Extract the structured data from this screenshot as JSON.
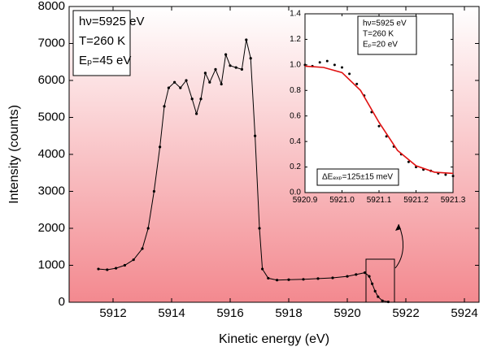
{
  "chart_data": [
    {
      "type": "line",
      "xlabel": "Kinetic energy (eV)",
      "ylabel": "Intensity (counts)",
      "xlim": [
        5910.5,
        5924.5
      ],
      "xticks": [
        5912,
        5914,
        5916,
        5918,
        5920,
        5922,
        5924
      ],
      "ylim": [
        0,
        8000
      ],
      "yticks": [
        0,
        1000,
        2000,
        3000,
        4000,
        5000,
        6000,
        7000,
        8000
      ],
      "annotations": [
        [
          "hν=5925 eV",
          "T=260 K",
          "Eₚ=45 eV"
        ]
      ],
      "series": [
        {
          "color": "#000000",
          "line": true,
          "markers": true,
          "x": [
            5911.5,
            5911.8,
            5912.1,
            5912.4,
            5912.7,
            5913.0,
            5913.2,
            5913.4,
            5913.6,
            5913.75,
            5913.9,
            5914.1,
            5914.3,
            5914.5,
            5914.7,
            5914.85,
            5915.0,
            5915.15,
            5915.3,
            5915.5,
            5915.7,
            5915.85,
            5916.0,
            5916.2,
            5916.4,
            5916.55,
            5916.7,
            5916.85,
            5917.0,
            5917.1,
            5917.3,
            5917.6,
            5918.0,
            5918.5,
            5919.0,
            5919.5,
            5920.0,
            5920.3,
            5920.6,
            5920.75,
            5920.85,
            5920.95,
            5921.05,
            5921.2,
            5921.4
          ],
          "values": [
            900,
            880,
            920,
            1000,
            1150,
            1450,
            2000,
            3000,
            4200,
            5300,
            5800,
            5950,
            5800,
            6000,
            5500,
            5100,
            5500,
            6200,
            5950,
            6300,
            5900,
            6700,
            6400,
            6350,
            6300,
            7100,
            6600,
            4500,
            2000,
            900,
            650,
            600,
            610,
            620,
            640,
            660,
            700,
            750,
            800,
            700,
            500,
            300,
            150,
            40,
            10
          ]
        }
      ]
    },
    {
      "type": "scatter",
      "xlim": [
        5920.9,
        5921.3
      ],
      "xticks": [
        5920.9,
        {
          "value": 5921,
          "label": "5921.0"
        },
        5921.1,
        5921.2,
        5921.3
      ],
      "ylim": [
        0,
        1.4
      ],
      "yticks": [
        {
          "value": 0,
          "label": "0.0"
        },
        0.2,
        0.4,
        0.6,
        0.8,
        {
          "value": 1,
          "label": "1.0"
        },
        1.2,
        1.4
      ],
      "annotations": [
        [
          "hν=5925 eV",
          "T=260 K",
          "Eₚ=20 eV"
        ],
        [
          "ΔEₑₓₚ=125±15 meV"
        ]
      ],
      "series": [
        {
          "color": "#000000",
          "markers": true,
          "x": [
            5920.9,
            5920.92,
            5920.94,
            5920.96,
            5920.98,
            5921.0,
            5921.02,
            5921.04,
            5921.06,
            5921.08,
            5921.1,
            5921.12,
            5921.14,
            5921.16,
            5921.18,
            5921.2,
            5921.22,
            5921.24,
            5921.26,
            5921.28,
            5921.3
          ],
          "values": [
            1.0,
            0.99,
            1.02,
            1.03,
            1.0,
            0.98,
            0.93,
            0.85,
            0.76,
            0.63,
            0.52,
            0.44,
            0.36,
            0.3,
            0.24,
            0.2,
            0.18,
            0.17,
            0.15,
            0.14,
            0.13
          ]
        },
        {
          "color": "#e01010",
          "line": true,
          "x": [
            5920.9,
            5920.95,
            5921.0,
            5921.05,
            5921.1,
            5921.15,
            5921.2,
            5921.25,
            5921.3
          ],
          "values": [
            0.99,
            0.98,
            0.94,
            0.8,
            0.55,
            0.33,
            0.21,
            0.16,
            0.15
          ]
        }
      ]
    }
  ]
}
